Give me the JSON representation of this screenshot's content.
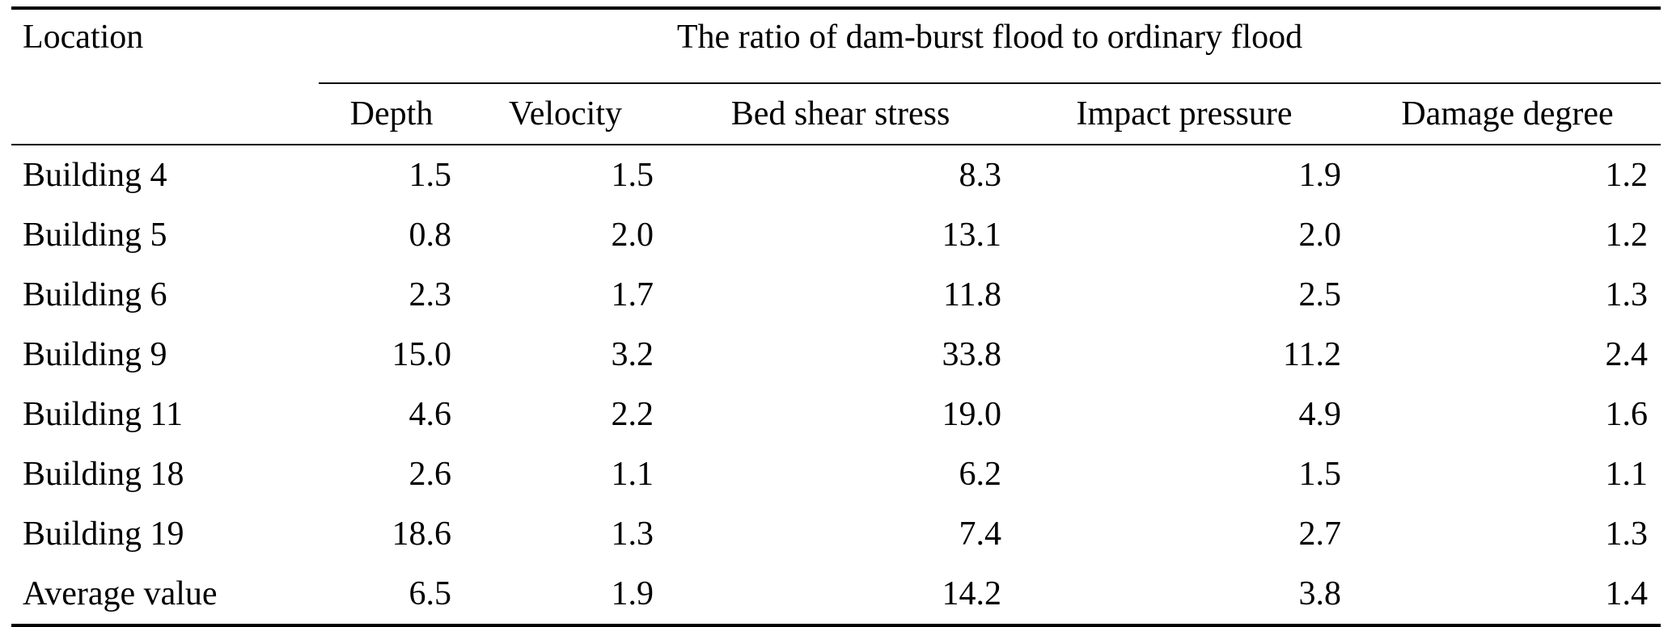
{
  "table": {
    "location_header": "Location",
    "span_header": "The ratio of dam-burst flood to ordinary flood",
    "sub_headers": [
      "Depth",
      "Velocity",
      "Bed shear stress",
      "Impact pressure",
      "Damage degree"
    ],
    "rows": [
      {
        "location": "Building 4",
        "values": [
          "1.5",
          "1.5",
          "8.3",
          "1.9",
          "1.2"
        ]
      },
      {
        "location": "Building 5",
        "values": [
          "0.8",
          "2.0",
          "13.1",
          "2.0",
          "1.2"
        ]
      },
      {
        "location": "Building 6",
        "values": [
          "2.3",
          "1.7",
          "11.8",
          "2.5",
          "1.3"
        ]
      },
      {
        "location": "Building 9",
        "values": [
          "15.0",
          "3.2",
          "33.8",
          "11.2",
          "2.4"
        ]
      },
      {
        "location": "Building 11",
        "values": [
          "4.6",
          "2.2",
          "19.0",
          "4.9",
          "1.6"
        ]
      },
      {
        "location": "Building 18",
        "values": [
          "2.6",
          "1.1",
          "6.2",
          "1.5",
          "1.1"
        ]
      },
      {
        "location": "Building 19",
        "values": [
          "18.6",
          "1.3",
          "7.4",
          "2.7",
          "1.3"
        ]
      },
      {
        "location": "Average value",
        "values": [
          "6.5",
          "1.9",
          "14.2",
          "3.8",
          "1.4"
        ]
      }
    ]
  },
  "chart_data": {
    "type": "table",
    "title": "The ratio of dam-burst flood to ordinary flood",
    "columns": [
      "Location",
      "Depth",
      "Velocity",
      "Bed shear stress",
      "Impact pressure",
      "Damage degree"
    ],
    "categories": [
      "Building 4",
      "Building 5",
      "Building 6",
      "Building 9",
      "Building 11",
      "Building 18",
      "Building 19",
      "Average value"
    ],
    "series": [
      {
        "name": "Depth",
        "values": [
          1.5,
          0.8,
          2.3,
          15.0,
          4.6,
          2.6,
          18.6,
          6.5
        ]
      },
      {
        "name": "Velocity",
        "values": [
          1.5,
          2.0,
          1.7,
          3.2,
          2.2,
          1.1,
          1.3,
          1.9
        ]
      },
      {
        "name": "Bed shear stress",
        "values": [
          8.3,
          13.1,
          11.8,
          33.8,
          19.0,
          6.2,
          7.4,
          14.2
        ]
      },
      {
        "name": "Impact pressure",
        "values": [
          1.9,
          2.0,
          2.5,
          11.2,
          4.9,
          1.5,
          2.7,
          3.8
        ]
      },
      {
        "name": "Damage degree",
        "values": [
          1.2,
          1.2,
          1.3,
          2.4,
          1.6,
          1.1,
          1.3,
          1.4
        ]
      }
    ]
  }
}
